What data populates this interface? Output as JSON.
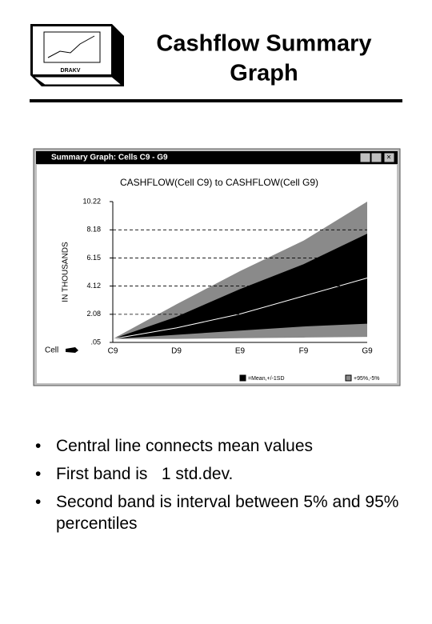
{
  "header": {
    "title_lines": [
      "Cashflow Summary",
      "Graph"
    ],
    "logo_label": "DRAKV"
  },
  "window": {
    "title": "Summary Graph: Cells C9 - G9"
  },
  "chart_data": {
    "type": "band",
    "title": "CASHFLOW(Cell C9) to CASHFLOW(Cell G9)",
    "y_label": "IN THOUSANDS",
    "x_label": "Cell",
    "categories": [
      "C9",
      "D9",
      "E9",
      "F9",
      "G9"
    ],
    "ylim": [
      0.05,
      10.22
    ],
    "yticks": [
      {
        "value": 0.05,
        "label": ".05"
      },
      2.08,
      4.12,
      6.15,
      8.18,
      10.22
    ],
    "grid": true,
    "series": [
      {
        "name": "+95%,-5%",
        "color": "#8a8a8a",
        "low": [
          0.3,
          0.3,
          0.35,
          0.4,
          0.45
        ],
        "high": [
          0.3,
          2.8,
          5.2,
          7.4,
          10.22
        ]
      },
      {
        "name": "=Mean,+/-1SD",
        "color": "#000000",
        "low": [
          0.3,
          0.6,
          0.9,
          1.2,
          1.4
        ],
        "high": [
          0.3,
          1.9,
          3.9,
          5.7,
          7.9
        ],
        "mean": [
          0.3,
          1.1,
          2.1,
          3.4,
          4.7
        ],
        "mean_color": "#ffffff"
      }
    ]
  },
  "bullets": [
    "Central line connects mean values",
    "First band is   1 std.dev.",
    "Second band is interval between 5% and 95% percentiles"
  ]
}
